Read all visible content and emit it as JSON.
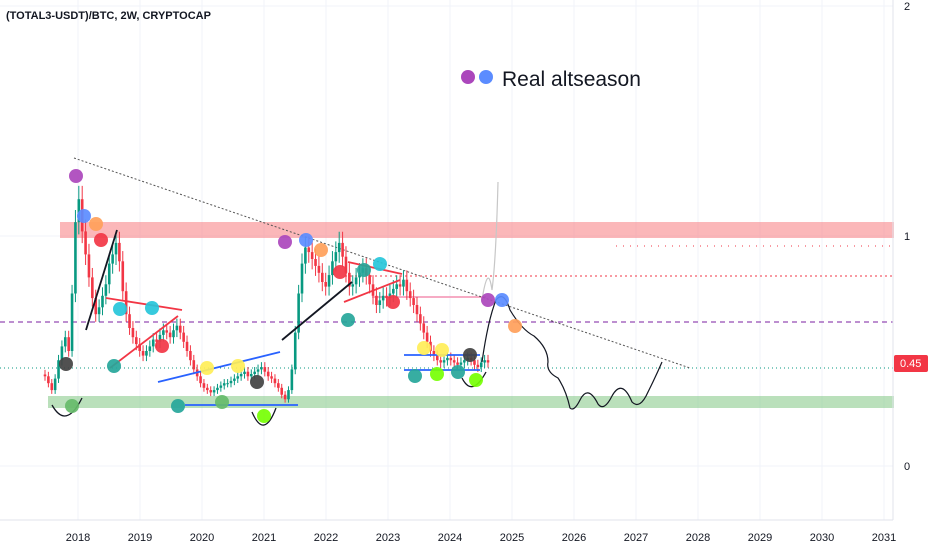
{
  "chart_data": {
    "type": "candlestick",
    "title": "(TOTAL3-USDT)/BTC, 2W, CRYPTOCAP",
    "x_ticks": [
      "2018",
      "2019",
      "2020",
      "2021",
      "2022",
      "2023",
      "2024",
      "2025",
      "2026",
      "2027",
      "2028",
      "2029",
      "2030",
      "2031"
    ],
    "y_ticks": [
      "2",
      "1",
      "0"
    ],
    "last_price": "0.45",
    "annotation": "Real altseason",
    "colors": {
      "up": "#089981",
      "down": "#f23645",
      "resistance_zone": "#f77c80",
      "support_zone": "#81c784"
    },
    "series": [
      {
        "values": [
          0.39,
          0.36,
          0.33,
          0.38,
          0.46,
          0.52,
          0.56,
          0.5,
          0.75,
          1.06,
          1.16,
          1.02,
          0.92,
          0.82,
          0.73,
          0.66,
          0.69,
          0.74,
          0.79,
          0.88,
          0.92,
          0.97,
          0.89,
          0.76,
          0.66,
          0.6,
          0.56,
          0.53,
          0.5,
          0.48,
          0.5,
          0.52,
          0.55,
          0.54,
          0.57,
          0.59,
          0.58,
          0.56,
          0.59,
          0.61,
          0.58,
          0.54,
          0.5,
          0.46,
          0.42,
          0.39,
          0.36,
          0.34,
          0.33,
          0.32,
          0.33,
          0.34,
          0.35,
          0.36,
          0.36,
          0.37,
          0.38,
          0.39,
          0.4,
          0.41,
          0.39,
          0.4,
          0.41,
          0.42,
          0.43,
          0.41,
          0.39,
          0.38,
          0.36,
          0.34,
          0.31,
          0.29,
          0.33,
          0.42,
          0.58,
          0.75,
          0.88,
          0.95,
          0.93,
          0.9,
          0.87,
          0.84,
          0.8,
          0.78,
          0.83,
          0.89,
          0.93,
          0.97,
          0.91,
          0.84,
          0.78,
          0.79,
          0.82,
          0.84,
          0.86,
          0.83,
          0.79,
          0.74,
          0.7,
          0.72,
          0.74,
          0.73,
          0.75,
          0.77,
          0.79,
          0.78,
          0.81,
          0.76,
          0.73,
          0.7,
          0.66,
          0.62,
          0.58,
          0.54,
          0.5,
          0.48,
          0.46,
          0.45,
          0.46,
          0.47,
          0.46,
          0.45,
          0.44,
          0.45,
          0.46,
          0.47,
          0.46,
          0.44,
          0.43,
          0.45,
          0.46,
          0.45
        ]
      }
    ]
  }
}
